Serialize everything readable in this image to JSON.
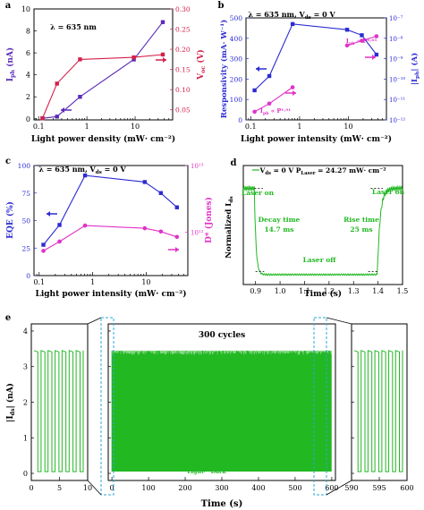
{
  "colors": {
    "blue": "#2b2bd4",
    "red": "#d4204a",
    "violet": "#5a2ab8",
    "pink": "#e032c8",
    "green": "#22b822",
    "cyan": "#2aa8d8",
    "frame": "#000000"
  },
  "chart_data": [
    {
      "panel": "a",
      "type": "line",
      "xlabel": "Light power density (mW· cm⁻²)",
      "ylabel_left": "I",
      "ylabel_left_sub": "ph",
      "ylabel_left_unit": " (nA)",
      "ylabel_right": "V",
      "ylabel_right_sub": "oc",
      "ylabel_right_unit": " (V)",
      "annotation": "λ = 635 nm",
      "x_log": true,
      "xlim": [
        0.08,
        60
      ],
      "x_ticks": [
        0.1,
        1,
        10
      ],
      "x_ticklabels": [
        "0.1",
        "1",
        "10"
      ],
      "ylim_left": [
        -0.1,
        10
      ],
      "yticks_left": [
        0,
        2,
        4,
        6,
        8,
        10
      ],
      "ylim_right": [
        0.025,
        0.3
      ],
      "yticks_right": [
        0.05,
        0.1,
        0.15,
        0.2,
        0.25,
        0.3
      ],
      "yticks_right_labels": [
        "0.05",
        "0.10",
        "0.15",
        "0.20",
        "0.25",
        "0.30"
      ],
      "series": [
        {
          "axis": "left",
          "color": "violet",
          "marker": "square",
          "x": [
            0.12,
            0.24,
            0.72,
            9.4,
            37.5
          ],
          "y": [
            0.05,
            0.2,
            2.0,
            5.4,
            8.8
          ]
        },
        {
          "axis": "right",
          "color": "red",
          "marker": "square",
          "x": [
            0.12,
            0.24,
            0.72,
            9.4,
            37.5
          ],
          "y": [
            0.029,
            0.115,
            0.175,
            0.18,
            0.187
          ]
        }
      ]
    },
    {
      "panel": "b",
      "type": "line",
      "xlabel": "Light power intensity (mW· cm⁻²)",
      "ylabel_left": "Responsivity (mA· W⁻¹)",
      "ylabel_right": "|I",
      "ylabel_right_sub": "ph",
      "ylabel_right_unit": "| (A)",
      "annotation": "λ = 635 nm, V",
      "annotation_sub": "ds",
      "annotation_rest": " = 0 V",
      "x_log": true,
      "xlim": [
        0.08,
        60
      ],
      "x_ticks": [
        0.1,
        1,
        10
      ],
      "x_ticklabels": [
        "0.1",
        "1",
        "10"
      ],
      "ylim_left": [
        0,
        500
      ],
      "yticks_left": [
        0,
        100,
        200,
        300,
        400,
        500
      ],
      "right_log_range": [
        -12,
        -7
      ],
      "yticks_right_labels": [
        "10⁻¹²",
        "10⁻¹¹",
        "10⁻¹⁰",
        "10⁻⁹",
        "10⁻⁸",
        "10⁻⁷"
      ],
      "fit_labels": [
        "I",
        "I"
      ],
      "fit_label_subs": [
        "ph",
        "ph"
      ],
      "fit_label_rest": [
        " ∝ P¹·⁹¹",
        " ∝ P⁰·⁶³"
      ],
      "series": [
        {
          "axis": "left",
          "color": "blue",
          "marker": "square",
          "x": [
            0.12,
            0.24,
            0.72,
            9.4,
            18.8,
            37.5
          ],
          "y": [
            145,
            215,
            470,
            442,
            415,
            320
          ]
        },
        {
          "axis": "right",
          "color": "pink",
          "marker": "circle",
          "x": [
            0.12,
            0.24,
            0.72
          ],
          "y": [
            -11.6,
            -11.2,
            -10.4
          ]
        },
        {
          "axis": "right",
          "color": "pink",
          "marker": "circle",
          "x": [
            9.4,
            18.8,
            37.5
          ],
          "y": [
            -8.35,
            -8.12,
            -7.9
          ]
        }
      ]
    },
    {
      "panel": "c",
      "type": "line",
      "xlabel": "Light power intensity (mW· cm⁻²)",
      "ylabel_left": "EQE (%)",
      "ylabel_right": "D* (Jones)",
      "annotation": "λ = 635 nm, V",
      "annotation_sub": "ds",
      "annotation_rest": " = 0 V",
      "x_log": true,
      "xlim": [
        0.08,
        60
      ],
      "x_ticks": [
        0.1,
        1,
        10
      ],
      "x_ticklabels": [
        "0.1",
        "1",
        "10"
      ],
      "ylim_left": [
        0,
        100
      ],
      "yticks_left": [
        0,
        25,
        50,
        75,
        100
      ],
      "right_log_range": [
        11.35,
        13.0
      ],
      "yticks_right_labels": [
        "10¹²",
        "10¹³"
      ],
      "series": [
        {
          "axis": "left",
          "color": "blue",
          "marker": "square",
          "x": [
            0.12,
            0.24,
            0.72,
            9.4,
            18.8,
            37.5
          ],
          "y": [
            28,
            46,
            91,
            85,
            75,
            62
          ]
        },
        {
          "axis": "right",
          "color": "pink",
          "marker": "circle",
          "x": [
            0.12,
            0.24,
            0.72,
            9.4,
            18.8,
            37.5
          ],
          "y": [
            11.72,
            11.86,
            12.1,
            12.06,
            12.01,
            11.93
          ]
        }
      ]
    },
    {
      "panel": "d",
      "type": "line",
      "xlabel": "Time (s)",
      "ylabel": "Normalized I",
      "ylabel_sub": "ds",
      "xlim": [
        0.85,
        1.5
      ],
      "x_ticks": [
        0.9,
        1.0,
        1.1,
        1.2,
        1.3,
        1.4,
        1.5
      ],
      "x_ticklabels": [
        "0.9",
        "1.0",
        "1.1",
        "1.2",
        "1.3",
        "1.4",
        "1.5"
      ],
      "ylim": [
        0,
        1.2
      ],
      "legend_prefix": "V",
      "legend_sub1": "ds",
      "legend_mid": " = 0 V  P",
      "legend_sub2": "Laser",
      "legend_rest": " = 24.27 mW· cm⁻²",
      "annotations": [
        "Laser on",
        "Decay time",
        "14.7 ms",
        "Laser off",
        "Rise time",
        "25 ms",
        "Laser on"
      ],
      "switch_times": [
        0.895,
        1.397
      ],
      "decay_ms": 14.7,
      "rise_ms": 25,
      "high_level": 0.97,
      "low_level": 0.1
    },
    {
      "panel": "e",
      "type": "line",
      "xlabel": "Time (s)",
      "ylabel": "|I",
      "ylabel_sub": "ds",
      "ylabel_unit": "| (nA)",
      "ylim": [
        -0.2,
        4.2
      ],
      "yticks": [
        0,
        1,
        2,
        3,
        4
      ],
      "on_level": 3.45,
      "off_level": 0.05,
      "title": "300 cycles",
      "ratio_label": "I",
      "ratio_sub1": "Light",
      "ratio_mid": "/I",
      "ratio_sub2": "Dark",
      "ratio_rest": " = 10⁴",
      "subpanels": [
        {
          "name": "left-zoom",
          "xlim": [
            0,
            10
          ],
          "x_ticks": [
            0,
            5,
            10
          ],
          "x_ticklabels": [
            "0",
            "5",
            "10"
          ],
          "cycles": 7
        },
        {
          "name": "full",
          "xlim": [
            -10,
            610
          ],
          "x_ticks": [
            0,
            100,
            200,
            300,
            400,
            500,
            600
          ],
          "x_ticklabels": [
            "0",
            "100",
            "200",
            "300",
            "400",
            "500",
            "600"
          ],
          "cycles": 300
        },
        {
          "name": "right-zoom",
          "xlim": [
            590,
            600
          ],
          "x_ticks": [
            590,
            595,
            600
          ],
          "x_ticklabels": [
            "590",
            "595",
            "600"
          ],
          "cycles": 7
        }
      ]
    }
  ],
  "panel_labels": [
    "a",
    "b",
    "c",
    "d",
    "e"
  ]
}
